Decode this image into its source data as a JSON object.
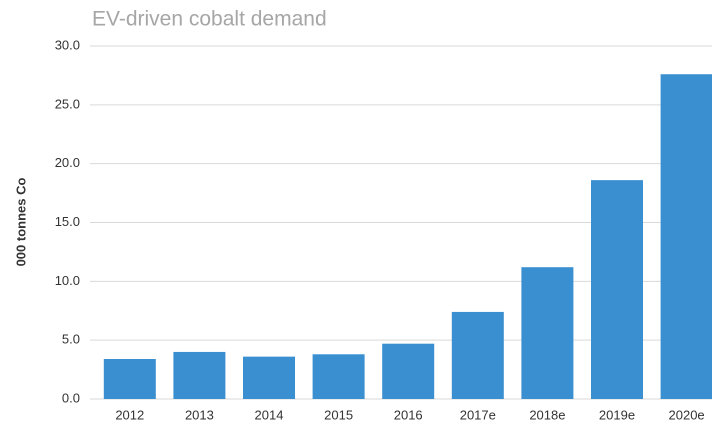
{
  "chart_data": {
    "type": "bar",
    "title": "EV-driven cobalt demand",
    "y_label": "000 tonnes Co",
    "categories": [
      "2012",
      "2013",
      "2014",
      "2015",
      "2016",
      "2017e",
      "2018e",
      "2019e",
      "2020e"
    ],
    "values": [
      3.4,
      4.0,
      3.6,
      3.8,
      4.7,
      7.4,
      11.2,
      18.6,
      27.6
    ],
    "color": "#3a8fd0",
    "ylim": [
      0,
      30
    ],
    "yticks": [
      {
        "value": 0,
        "label": "0.0"
      },
      {
        "value": 5,
        "label": "5.0"
      },
      {
        "value": 10,
        "label": "10.0"
      },
      {
        "value": 15,
        "label": "15.0"
      },
      {
        "value": 20,
        "label": "20.0"
      },
      {
        "value": 25,
        "label": "25.0"
      },
      {
        "value": 30,
        "label": "30.0"
      }
    ],
    "grid": true
  }
}
